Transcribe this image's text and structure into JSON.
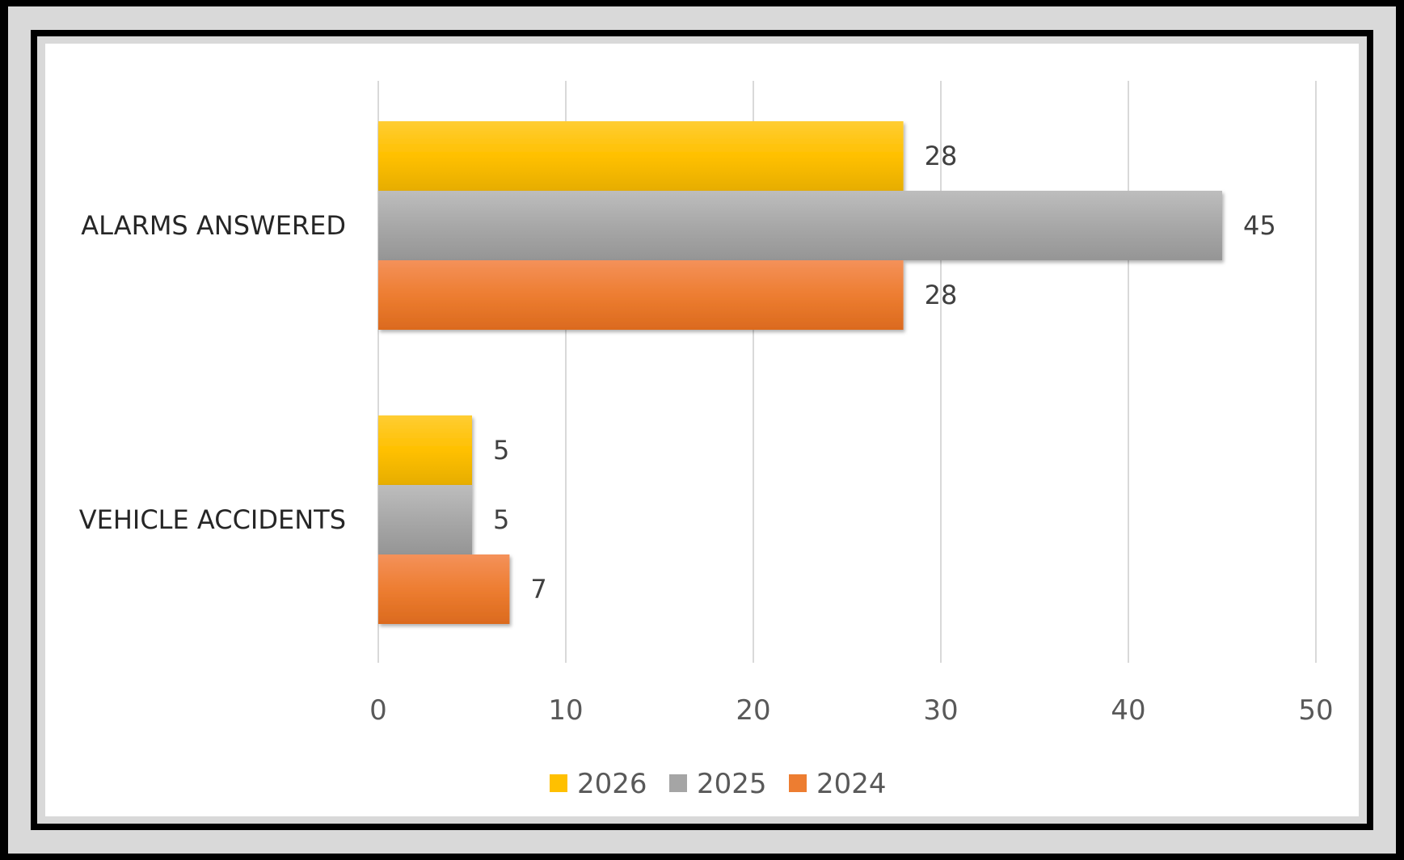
{
  "chart_data": {
    "type": "bar",
    "orientation": "horizontal",
    "categories": [
      "ALARMS ANSWERED",
      "VEHICLE ACCIDENTS"
    ],
    "series": [
      {
        "name": "2026",
        "values": [
          28,
          5
        ],
        "color": "#FFC000"
      },
      {
        "name": "2025",
        "values": [
          45,
          5
        ],
        "color": "#A5A5A5"
      },
      {
        "name": "2024",
        "values": [
          28,
          7
        ],
        "color": "#ED7D31"
      }
    ],
    "xlim": [
      0,
      50
    ],
    "xticks": [
      "0",
      "10",
      "20",
      "30",
      "40",
      "50"
    ],
    "grid": true,
    "legend_position": "bottom"
  }
}
